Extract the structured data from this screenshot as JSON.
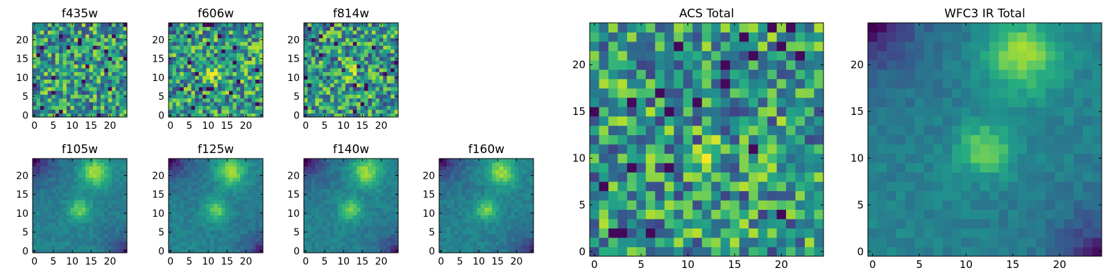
{
  "colormap": "viridis",
  "chart_data": [
    {
      "id": "f435w",
      "type": "heatmap",
      "title": "f435w",
      "grid_size": 25,
      "xticks": [
        0,
        5,
        10,
        15,
        20
      ],
      "yticks": [
        0,
        5,
        10,
        15,
        20
      ],
      "xlim": [
        0,
        25
      ],
      "ylim": [
        0,
        25
      ],
      "pattern": "noise",
      "value_range": [
        0,
        1
      ],
      "bright_spots": []
    },
    {
      "id": "f606w",
      "type": "heatmap",
      "title": "f606w",
      "grid_size": 25,
      "xticks": [
        0,
        5,
        10,
        15,
        20
      ],
      "yticks": [
        0,
        5,
        10,
        15,
        20
      ],
      "xlim": [
        0,
        25
      ],
      "ylim": [
        0,
        25
      ],
      "pattern": "noise",
      "value_range": [
        0,
        1
      ],
      "bright_spots": [
        {
          "x": 12,
          "y": 11
        }
      ]
    },
    {
      "id": "f814w",
      "type": "heatmap",
      "title": "f814w",
      "grid_size": 25,
      "xticks": [
        0,
        5,
        10,
        15,
        20
      ],
      "yticks": [
        0,
        5,
        10,
        15,
        20
      ],
      "xlim": [
        0,
        25
      ],
      "ylim": [
        0,
        25
      ],
      "pattern": "noise",
      "value_range": [
        0,
        1
      ],
      "bright_spots": [
        {
          "x": 12,
          "y": 11
        }
      ]
    },
    {
      "id": "f105w",
      "type": "heatmap",
      "title": "f105w",
      "grid_size": 25,
      "xticks": [
        0,
        5,
        10,
        15,
        20
      ],
      "yticks": [
        0,
        5,
        10,
        15,
        20
      ],
      "xlim": [
        0,
        25
      ],
      "ylim": [
        0,
        25
      ],
      "pattern": "smooth",
      "value_range": [
        0,
        1
      ],
      "bright_spots": [
        {
          "x": 12,
          "y": 11
        },
        {
          "x": 16,
          "y": 21
        }
      ]
    },
    {
      "id": "f125w",
      "type": "heatmap",
      "title": "f125w",
      "grid_size": 25,
      "xticks": [
        0,
        5,
        10,
        15,
        20
      ],
      "yticks": [
        0,
        5,
        10,
        15,
        20
      ],
      "xlim": [
        0,
        25
      ],
      "ylim": [
        0,
        25
      ],
      "pattern": "smooth",
      "value_range": [
        0,
        1
      ],
      "bright_spots": [
        {
          "x": 12,
          "y": 11
        },
        {
          "x": 16,
          "y": 21
        }
      ]
    },
    {
      "id": "f140w",
      "type": "heatmap",
      "title": "f140w",
      "grid_size": 25,
      "xticks": [
        0,
        5,
        10,
        15,
        20
      ],
      "yticks": [
        0,
        5,
        10,
        15,
        20
      ],
      "xlim": [
        0,
        25
      ],
      "ylim": [
        0,
        25
      ],
      "pattern": "smooth",
      "value_range": [
        0,
        1
      ],
      "bright_spots": [
        {
          "x": 12,
          "y": 11
        },
        {
          "x": 16,
          "y": 21
        }
      ]
    },
    {
      "id": "f160w",
      "type": "heatmap",
      "title": "f160w",
      "grid_size": 25,
      "xticks": [
        0,
        5,
        10,
        15,
        20
      ],
      "yticks": [
        0,
        5,
        10,
        15,
        20
      ],
      "xlim": [
        0,
        25
      ],
      "ylim": [
        0,
        25
      ],
      "pattern": "smooth",
      "value_range": [
        0,
        1
      ],
      "bright_spots": [
        {
          "x": 12,
          "y": 11
        },
        {
          "x": 16,
          "y": 21
        }
      ]
    },
    {
      "id": "acs_total",
      "type": "heatmap",
      "title": "ACS Total",
      "grid_size": 25,
      "xticks": [
        0,
        5,
        10,
        15,
        20
      ],
      "yticks": [
        0,
        5,
        10,
        15,
        20
      ],
      "xlim": [
        0,
        25
      ],
      "ylim": [
        0,
        25
      ],
      "pattern": "noise",
      "value_range": [
        0,
        1
      ],
      "bright_spots": [
        {
          "x": 12,
          "y": 11
        }
      ]
    },
    {
      "id": "wfc3_ir_total",
      "type": "heatmap",
      "title": "WFC3 IR Total",
      "grid_size": 25,
      "xticks": [
        0,
        5,
        10,
        15,
        20
      ],
      "yticks": [
        0,
        5,
        10,
        15,
        20
      ],
      "xlim": [
        0,
        25
      ],
      "ylim": [
        0,
        25
      ],
      "pattern": "smooth",
      "value_range": [
        0,
        1
      ],
      "bright_spots": [
        {
          "x": 12,
          "y": 11
        },
        {
          "x": 16,
          "y": 21
        }
      ]
    }
  ]
}
